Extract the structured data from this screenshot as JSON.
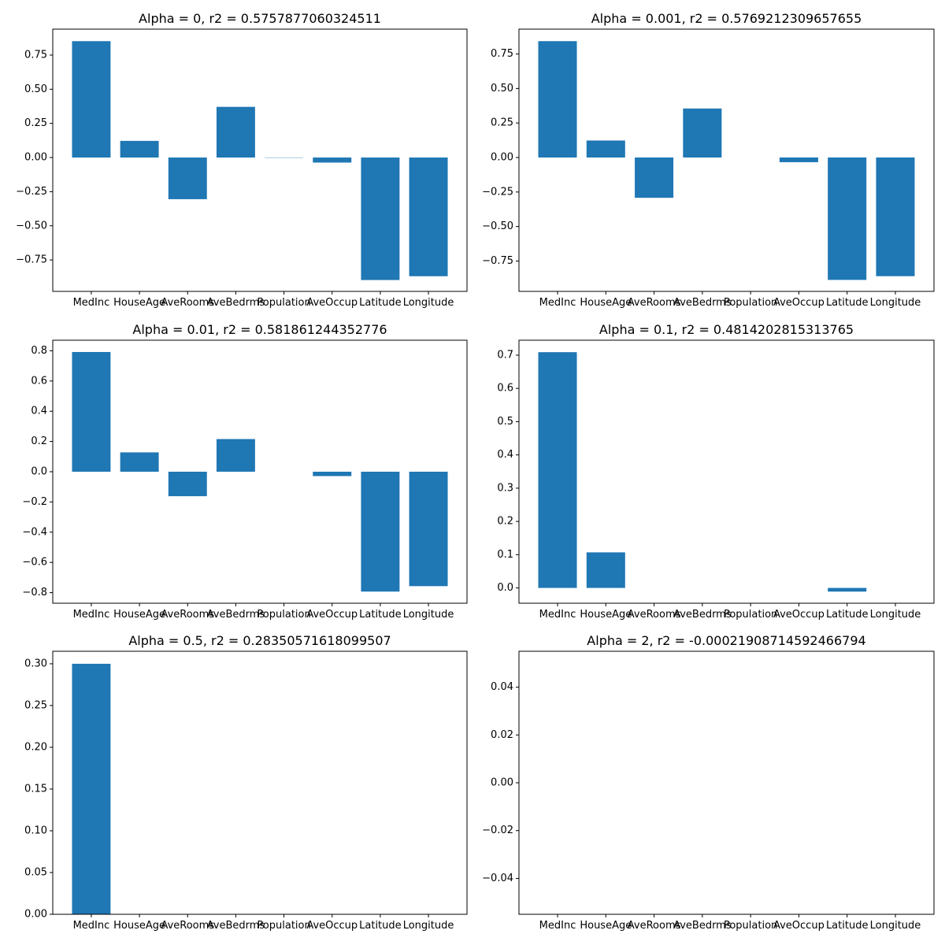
{
  "chart_data": [
    {
      "type": "bar",
      "title": "Alpha = 0, r2 = 0.5757877060324511",
      "categories": [
        "MedInc",
        "HouseAge",
        "AveRooms",
        "AveBedrms",
        "Population",
        "AveOccup",
        "Latitude",
        "Longitude"
      ],
      "values": [
        0.852,
        0.122,
        -0.305,
        0.371,
        -0.002,
        -0.037,
        -0.897,
        -0.869
      ],
      "ylim": [
        -0.98,
        0.94
      ],
      "yticks": [
        -0.75,
        -0.5,
        -0.25,
        0.0,
        0.25,
        0.5,
        0.75
      ],
      "ytick_labels": [
        "−0.75",
        "−0.50",
        "−0.25",
        "0.00",
        "0.25",
        "0.50",
        "0.75"
      ],
      "xlabel": "",
      "ylabel": "",
      "color": "#1f77b4"
    },
    {
      "type": "bar",
      "title": "Alpha = 0.001, r2 = 0.5769212309657655",
      "categories": [
        "MedInc",
        "HouseAge",
        "AveRooms",
        "AveBedrms",
        "Population",
        "AveOccup",
        "Latitude",
        "Longitude"
      ],
      "values": [
        0.843,
        0.123,
        -0.292,
        0.355,
        0.0,
        -0.034,
        -0.887,
        -0.86
      ],
      "ylim": [
        -0.97,
        0.93
      ],
      "yticks": [
        -0.75,
        -0.5,
        -0.25,
        0.0,
        0.25,
        0.5,
        0.75
      ],
      "ytick_labels": [
        "−0.75",
        "−0.50",
        "−0.25",
        "0.00",
        "0.25",
        "0.50",
        "0.75"
      ],
      "xlabel": "",
      "ylabel": "",
      "color": "#1f77b4"
    },
    {
      "type": "bar",
      "title": "Alpha = 0.01, r2 = 0.581861244352776",
      "categories": [
        "MedInc",
        "HouseAge",
        "AveRooms",
        "AveBedrms",
        "Population",
        "AveOccup",
        "Latitude",
        "Longitude"
      ],
      "values": [
        0.792,
        0.128,
        -0.162,
        0.216,
        0.0,
        -0.029,
        -0.793,
        -0.757
      ],
      "ylim": [
        -0.87,
        0.87
      ],
      "yticks": [
        -0.8,
        -0.6,
        -0.4,
        -0.2,
        0.0,
        0.2,
        0.4,
        0.6,
        0.8
      ],
      "ytick_labels": [
        "−0.8",
        "−0.6",
        "−0.4",
        "−0.2",
        "0.0",
        "0.2",
        "0.4",
        "0.6",
        "0.8"
      ],
      "xlabel": "",
      "ylabel": "",
      "color": "#1f77b4"
    },
    {
      "type": "bar",
      "title": "Alpha = 0.1, r2 = 0.4814202815313765",
      "categories": [
        "MedInc",
        "HouseAge",
        "AveRooms",
        "AveBedrms",
        "Population",
        "AveOccup",
        "Latitude",
        "Longitude"
      ],
      "values": [
        0.709,
        0.107,
        0.0,
        0.0,
        0.0,
        0.0,
        -0.011,
        0.0
      ],
      "ylim": [
        -0.046,
        0.745
      ],
      "yticks": [
        0.0,
        0.1,
        0.2,
        0.3,
        0.4,
        0.5,
        0.6,
        0.7
      ],
      "ytick_labels": [
        "0.0",
        "0.1",
        "0.2",
        "0.3",
        "0.4",
        "0.5",
        "0.6",
        "0.7"
      ],
      "xlabel": "",
      "ylabel": "",
      "color": "#1f77b4"
    },
    {
      "type": "bar",
      "title": "Alpha = 0.5, r2 = 0.28350571618099507",
      "categories": [
        "MedInc",
        "HouseAge",
        "AveRooms",
        "AveBedrms",
        "Population",
        "AveOccup",
        "Latitude",
        "Longitude"
      ],
      "values": [
        0.3,
        0.0,
        0.0,
        0.0,
        0.0,
        0.0,
        0.0,
        0.0
      ],
      "ylim": [
        0.0,
        0.315
      ],
      "yticks": [
        0.0,
        0.05,
        0.1,
        0.15,
        0.2,
        0.25,
        0.3
      ],
      "ytick_labels": [
        "0.00",
        "0.05",
        "0.10",
        "0.15",
        "0.20",
        "0.25",
        "0.30"
      ],
      "xlabel": "",
      "ylabel": "",
      "color": "#1f77b4"
    },
    {
      "type": "bar",
      "title": "Alpha = 2, r2 = -0.00021908714592466794",
      "categories": [
        "MedInc",
        "HouseAge",
        "AveRooms",
        "AveBedrms",
        "Population",
        "AveOccup",
        "Latitude",
        "Longitude"
      ],
      "values": [
        0.0,
        0.0,
        0.0,
        0.0,
        0.0,
        0.0,
        0.0,
        0.0
      ],
      "ylim": [
        -0.055,
        0.055
      ],
      "yticks": [
        -0.04,
        -0.02,
        0.0,
        0.02,
        0.04
      ],
      "ytick_labels": [
        "−0.04",
        "−0.02",
        "0.00",
        "0.02",
        "0.04"
      ],
      "xlabel": "",
      "ylabel": "",
      "color": "#1f77b4"
    }
  ]
}
